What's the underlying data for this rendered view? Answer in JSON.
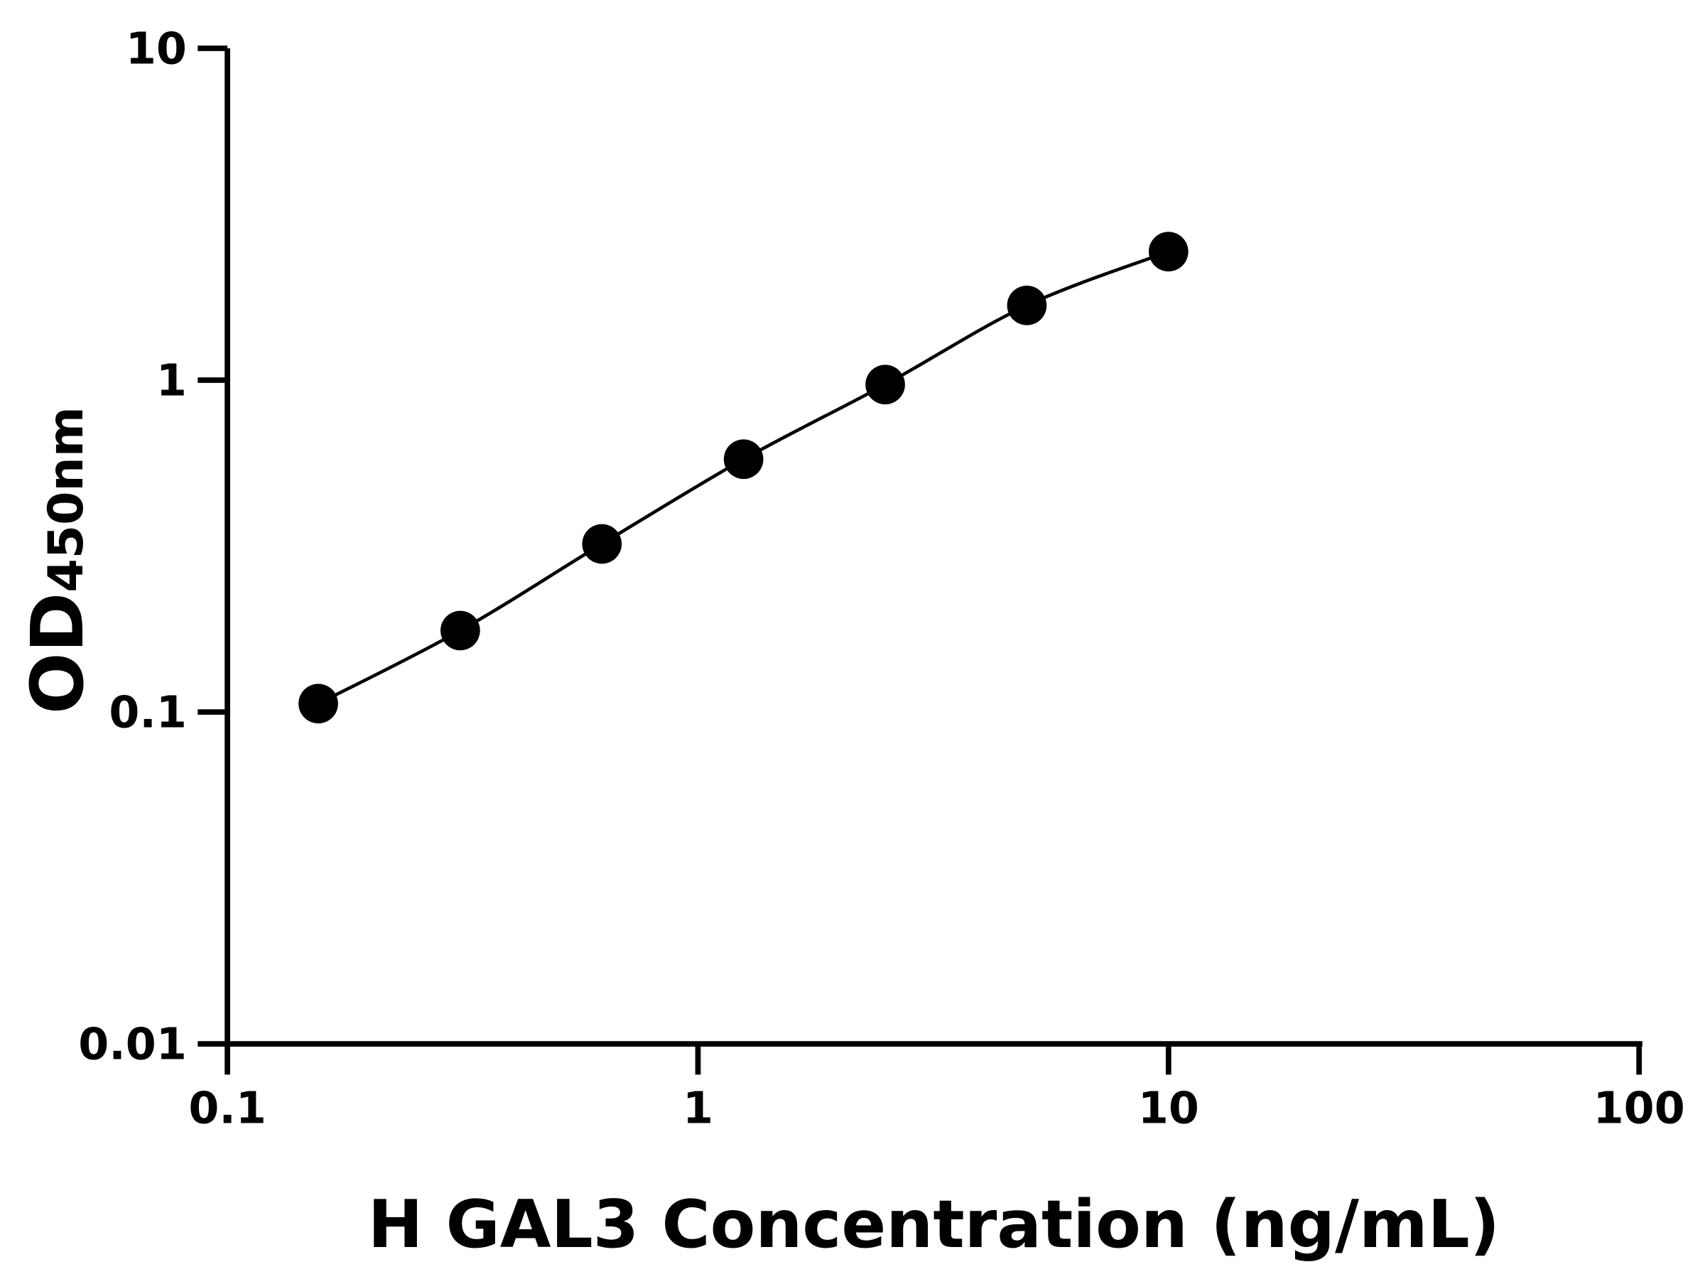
{
  "chart_data": {
    "type": "scatter",
    "title": "",
    "xlabel": "H GAL3 Concentration (ng/mL)",
    "ylabel": {
      "main": "OD",
      "subscript": "450nm"
    },
    "xscale": "log",
    "yscale": "log",
    "xlim": [
      0.1,
      100
    ],
    "ylim": [
      0.01,
      10
    ],
    "xticks": [
      {
        "value": 0.1,
        "label": "0.1"
      },
      {
        "value": 1,
        "label": "1"
      },
      {
        "value": 10,
        "label": "10"
      },
      {
        "value": 100,
        "label": "100"
      }
    ],
    "yticks": [
      {
        "value": 0.01,
        "label": "0.01"
      },
      {
        "value": 0.1,
        "label": "0.1"
      },
      {
        "value": 1,
        "label": "1"
      },
      {
        "value": 10,
        "label": "10"
      }
    ],
    "grid": false,
    "legend": "none",
    "fit_curve": true,
    "color": "#000000",
    "series": [
      {
        "x": [
          0.156,
          0.3125,
          0.625,
          1.25,
          2.5,
          5,
          10
        ],
        "y": [
          0.106,
          0.176,
          0.321,
          0.578,
          0.97,
          1.68,
          2.44
        ]
      }
    ]
  }
}
